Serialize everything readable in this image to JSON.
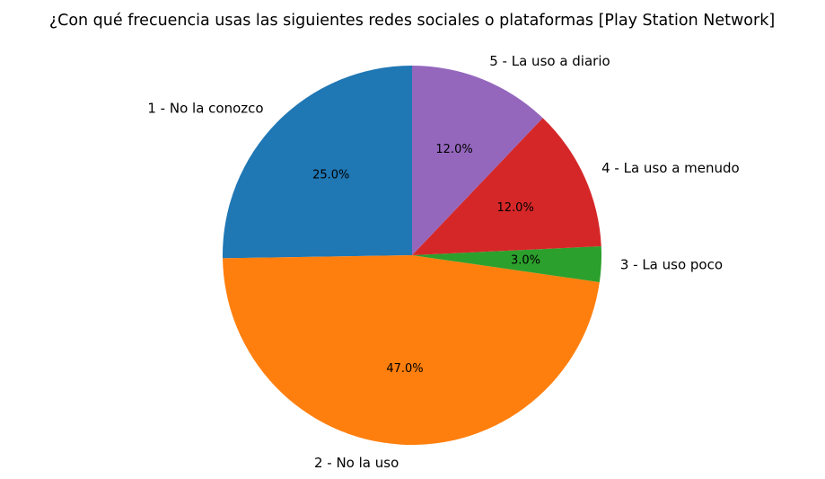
{
  "chart_data": {
    "type": "pie",
    "title": "¿Con qué frecuencia usas las siguientes redes sociales o plataformas [Play Station Network]",
    "start_angle_deg": 90,
    "direction": "counterclockwise",
    "slices": [
      {
        "label": "1 - No la conozco",
        "value": 25.0,
        "pct_label": "25.0%",
        "color": "#1f77b4"
      },
      {
        "label": "2 - No la uso",
        "value": 47.0,
        "pct_label": "47.0%",
        "color": "#ff7f0e"
      },
      {
        "label": "3 - La uso poco",
        "value": 3.0,
        "pct_label": "3.0%",
        "color": "#2ca02c"
      },
      {
        "label": "4 - La uso a menudo",
        "value": 12.0,
        "pct_label": "12.0%",
        "color": "#d62728"
      },
      {
        "label": "5 - La uso a diario",
        "value": 12.0,
        "pct_label": "12.0%",
        "color": "#9467bd"
      }
    ],
    "legend": "none"
  }
}
